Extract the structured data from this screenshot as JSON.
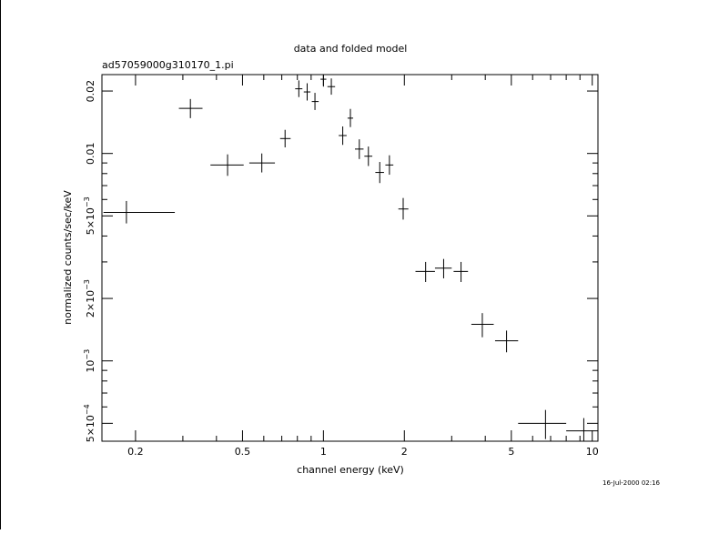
{
  "chart_data": {
    "type": "scatter",
    "title": "data and folded model",
    "subtitle": "ad57059000g310170_1.pi",
    "xlabel": "channel energy (keV)",
    "ylabel": "normalized counts/sec/keV",
    "timestamp": "16-Jul-2000 02:16",
    "x_scale": "log",
    "y_scale": "log",
    "xlim": [
      0.15,
      10.5
    ],
    "ylim": [
      0.00041,
      0.024
    ],
    "grid": false,
    "x_ticks": [
      {
        "value": 0.2,
        "label": "0.2"
      },
      {
        "value": 0.5,
        "label": "0.5"
      },
      {
        "value": 1,
        "label": "1"
      },
      {
        "value": 2,
        "label": "2"
      },
      {
        "value": 5,
        "label": "5"
      },
      {
        "value": 10,
        "label": "10"
      }
    ],
    "y_ticks": [
      {
        "value": 0.0005,
        "mant": "5×10",
        "exp": "−4"
      },
      {
        "value": 0.001,
        "mant": "10",
        "exp": "−3"
      },
      {
        "value": 0.002,
        "mant": "2×10",
        "exp": "−3"
      },
      {
        "value": 0.005,
        "mant": "5×10",
        "exp": "−3"
      },
      {
        "value": 0.01,
        "mant": "0.01",
        "exp": ""
      },
      {
        "value": 0.02,
        "mant": "0.02",
        "exp": ""
      }
    ],
    "points": [
      {
        "x": 0.185,
        "xlo": 0.152,
        "xhi": 0.28,
        "y": 0.0052,
        "ylo": 0.0046,
        "yhi": 0.0059
      },
      {
        "x": 0.32,
        "xlo": 0.29,
        "xhi": 0.355,
        "y": 0.0165,
        "ylo": 0.0148,
        "yhi": 0.0183
      },
      {
        "x": 0.44,
        "xlo": 0.38,
        "xhi": 0.505,
        "y": 0.0088,
        "ylo": 0.0078,
        "yhi": 0.0099
      },
      {
        "x": 0.59,
        "xlo": 0.53,
        "xhi": 0.66,
        "y": 0.009,
        "ylo": 0.0081,
        "yhi": 0.01
      },
      {
        "x": 0.72,
        "xlo": 0.69,
        "xhi": 0.755,
        "y": 0.0118,
        "ylo": 0.0107,
        "yhi": 0.013
      },
      {
        "x": 0.81,
        "xlo": 0.785,
        "xhi": 0.835,
        "y": 0.0205,
        "ylo": 0.0187,
        "yhi": 0.0225
      },
      {
        "x": 0.87,
        "xlo": 0.845,
        "xhi": 0.895,
        "y": 0.0198,
        "ylo": 0.018,
        "yhi": 0.0218
      },
      {
        "x": 0.93,
        "xlo": 0.905,
        "xhi": 0.96,
        "y": 0.0178,
        "ylo": 0.0162,
        "yhi": 0.0196
      },
      {
        "x": 1.0,
        "xlo": 0.975,
        "xhi": 1.025,
        "y": 0.0228,
        "ylo": 0.021,
        "yhi": 0.0245
      },
      {
        "x": 1.07,
        "xlo": 1.035,
        "xhi": 1.105,
        "y": 0.021,
        "ylo": 0.0192,
        "yhi": 0.023
      },
      {
        "x": 1.18,
        "xlo": 1.14,
        "xhi": 1.22,
        "y": 0.0122,
        "ylo": 0.011,
        "yhi": 0.0135
      },
      {
        "x": 1.26,
        "xlo": 1.23,
        "xhi": 1.29,
        "y": 0.0148,
        "ylo": 0.0134,
        "yhi": 0.0164
      },
      {
        "x": 1.36,
        "xlo": 1.31,
        "xhi": 1.41,
        "y": 0.0105,
        "ylo": 0.0094,
        "yhi": 0.0117
      },
      {
        "x": 1.47,
        "xlo": 1.42,
        "xhi": 1.52,
        "y": 0.0097,
        "ylo": 0.0087,
        "yhi": 0.0108
      },
      {
        "x": 1.62,
        "xlo": 1.56,
        "xhi": 1.68,
        "y": 0.0081,
        "ylo": 0.0072,
        "yhi": 0.0091
      },
      {
        "x": 1.76,
        "xlo": 1.7,
        "xhi": 1.82,
        "y": 0.0088,
        "ylo": 0.0079,
        "yhi": 0.0098
      },
      {
        "x": 1.98,
        "xlo": 1.9,
        "xhi": 2.07,
        "y": 0.0054,
        "ylo": 0.0048,
        "yhi": 0.0061
      },
      {
        "x": 2.4,
        "xlo": 2.2,
        "xhi": 2.6,
        "y": 0.0027,
        "ylo": 0.0024,
        "yhi": 0.003
      },
      {
        "x": 2.8,
        "xlo": 2.6,
        "xhi": 3.0,
        "y": 0.0028,
        "ylo": 0.0025,
        "yhi": 0.0031
      },
      {
        "x": 3.25,
        "xlo": 3.05,
        "xhi": 3.45,
        "y": 0.0027,
        "ylo": 0.0024,
        "yhi": 0.003
      },
      {
        "x": 3.9,
        "xlo": 3.55,
        "xhi": 4.3,
        "y": 0.0015,
        "ylo": 0.0013,
        "yhi": 0.0017
      },
      {
        "x": 4.8,
        "xlo": 4.35,
        "xhi": 5.3,
        "y": 0.00125,
        "ylo": 0.0011,
        "yhi": 0.0014
      },
      {
        "x": 6.7,
        "xlo": 5.3,
        "xhi": 8.0,
        "y": 0.0005,
        "ylo": 0.00042,
        "yhi": 0.00058
      },
      {
        "x": 9.3,
        "xlo": 8.0,
        "xhi": 10.5,
        "y": 0.00046,
        "ylo": 0.00041,
        "yhi": 0.00053
      }
    ]
  }
}
